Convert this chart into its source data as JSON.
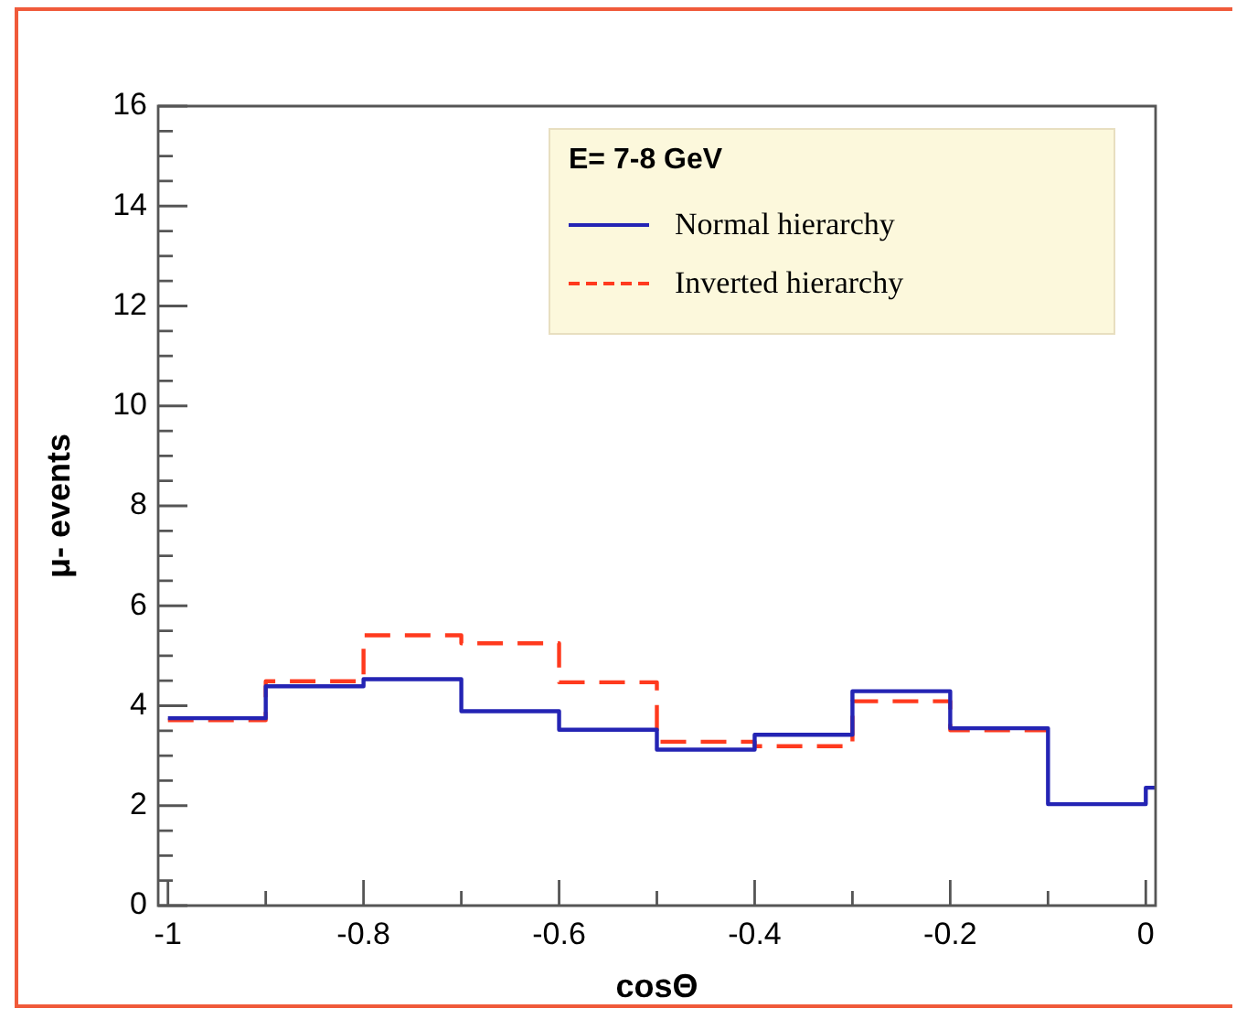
{
  "chart_data": {
    "type": "histogram",
    "xlabel": "cosΘ",
    "ylabel": "μ- events",
    "legend_title": "E= 7-8 GeV",
    "legend": "top right",
    "bins": [
      -1,
      -0.9,
      -0.8,
      -0.7,
      -0.6,
      -0.5,
      -0.4,
      -0.3,
      -0.2,
      -0.1,
      0,
      0.01
    ],
    "series": [
      {
        "name": "Normal hierarchy",
        "color": "#2424b4",
        "line_style": "solid",
        "values": [
          3.75,
          4.39,
          4.53,
          3.89,
          3.52,
          3.12,
          3.42,
          4.29,
          3.55,
          2.03,
          2.36
        ]
      },
      {
        "name": "Inverted hierarchy",
        "color": "#ff3a1e",
        "line_style": "dashed",
        "bins": [
          -1,
          -0.9,
          -0.8,
          -0.7,
          -0.6,
          -0.5,
          -0.4,
          -0.3,
          -0.2,
          -0.1
        ],
        "values": [
          3.71,
          4.49,
          5.41,
          5.25,
          4.47,
          3.28,
          3.19,
          4.09,
          3.51
        ]
      }
    ],
    "xlim": [
      -1.01,
      0.01
    ],
    "xticks": [
      -1,
      {
        "value": -0.9,
        "label": null
      },
      -0.8,
      {
        "value": -0.7,
        "label": null
      },
      -0.6,
      {
        "value": -0.5,
        "label": null
      },
      -0.4,
      {
        "value": -0.3,
        "label": null
      },
      -0.2,
      {
        "value": -0.1,
        "label": null
      },
      0
    ],
    "ylim": [
      0,
      16
    ],
    "yticks": [
      0,
      {
        "value": 0.5,
        "label": null
      },
      {
        "value": 1,
        "label": null
      },
      {
        "value": 1.5,
        "label": null
      },
      2,
      {
        "value": 2.5,
        "label": null
      },
      {
        "value": 3,
        "label": null
      },
      {
        "value": 3.5,
        "label": null
      },
      4,
      {
        "value": 4.5,
        "label": null
      },
      {
        "value": 5,
        "label": null
      },
      {
        "value": 5.5,
        "label": null
      },
      6,
      {
        "value": 6.5,
        "label": null
      },
      {
        "value": 7,
        "label": null
      },
      {
        "value": 7.5,
        "label": null
      },
      8,
      {
        "value": 8.5,
        "label": null
      },
      {
        "value": 9,
        "label": null
      },
      {
        "value": 9.5,
        "label": null
      },
      10,
      {
        "value": 10.5,
        "label": null
      },
      {
        "value": 11,
        "label": null
      },
      {
        "value": 11.5,
        "label": null
      },
      12,
      {
        "value": 12.5,
        "label": null
      },
      {
        "value": 13,
        "label": null
      },
      {
        "value": 13.5,
        "label": null
      },
      14,
      {
        "value": 14.5,
        "label": null
      },
      {
        "value": 15,
        "label": null
      },
      {
        "value": 15.5,
        "label": null
      },
      16
    ],
    "grid": false
  }
}
